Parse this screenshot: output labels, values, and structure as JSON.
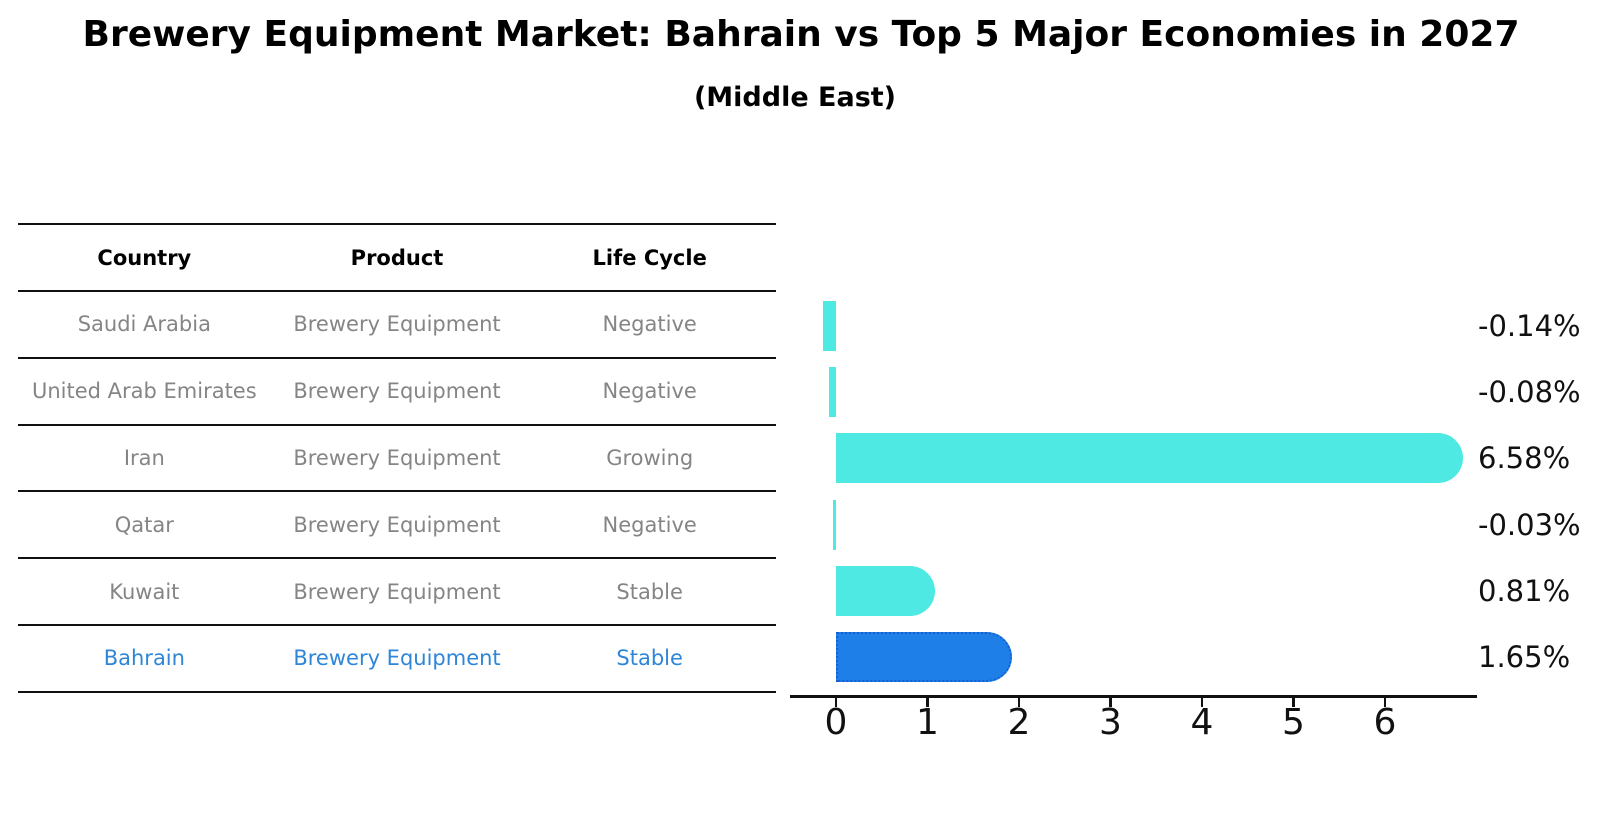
{
  "header": {
    "title": "Brewery Equipment Market: Bahrain vs Top 5 Major Economies in 2027",
    "subtitle": "(Middle East)"
  },
  "table": {
    "columns": [
      "Country",
      "Product",
      "Life Cycle"
    ],
    "rows": [
      {
        "country": "Saudi Arabia",
        "product": "Brewery Equipment",
        "life_cycle": "Negative",
        "highlight": false
      },
      {
        "country": "United Arab Emirates",
        "product": "Brewery Equipment",
        "life_cycle": "Negative",
        "highlight": false
      },
      {
        "country": "Iran",
        "product": "Brewery Equipment",
        "life_cycle": "Growing",
        "highlight": false
      },
      {
        "country": "Qatar",
        "product": "Brewery Equipment",
        "life_cycle": "Negative",
        "highlight": false
      },
      {
        "country": "Kuwait",
        "product": "Brewery Equipment",
        "life_cycle": "Stable",
        "highlight": false
      },
      {
        "country": "Bahrain",
        "product": "Brewery Equipment",
        "life_cycle": "Stable",
        "highlight": true
      }
    ]
  },
  "chart_data": {
    "type": "bar",
    "orientation": "horizontal",
    "title": "Brewery Equipment Market: Bahrain vs Top 5 Major Economies in 2027",
    "subtitle": "(Middle East)",
    "categories": [
      "Saudi Arabia",
      "United Arab Emirates",
      "Iran",
      "Qatar",
      "Kuwait",
      "Bahrain"
    ],
    "values": [
      -0.14,
      -0.08,
      6.58,
      -0.03,
      0.81,
      1.65
    ],
    "value_labels": [
      "-0.14%",
      "-0.08%",
      "6.58%",
      "-0.03%",
      "0.81%",
      "1.65%"
    ],
    "unit": "percent",
    "xticks": [
      0,
      1,
      2,
      3,
      4,
      5,
      6
    ],
    "xlim": [
      -0.5,
      7.0
    ],
    "grid": false,
    "legend": false,
    "highlight_index": 5
  },
  "colors": {
    "bar_default": "#4DE9E2",
    "bar_highlight": "#1E7FE8",
    "bar_highlight_border": "#1560CF",
    "row_text": "#858585",
    "row_text_highlight": "#2E86D9",
    "axis": "#111111",
    "label_text": "#111111"
  }
}
